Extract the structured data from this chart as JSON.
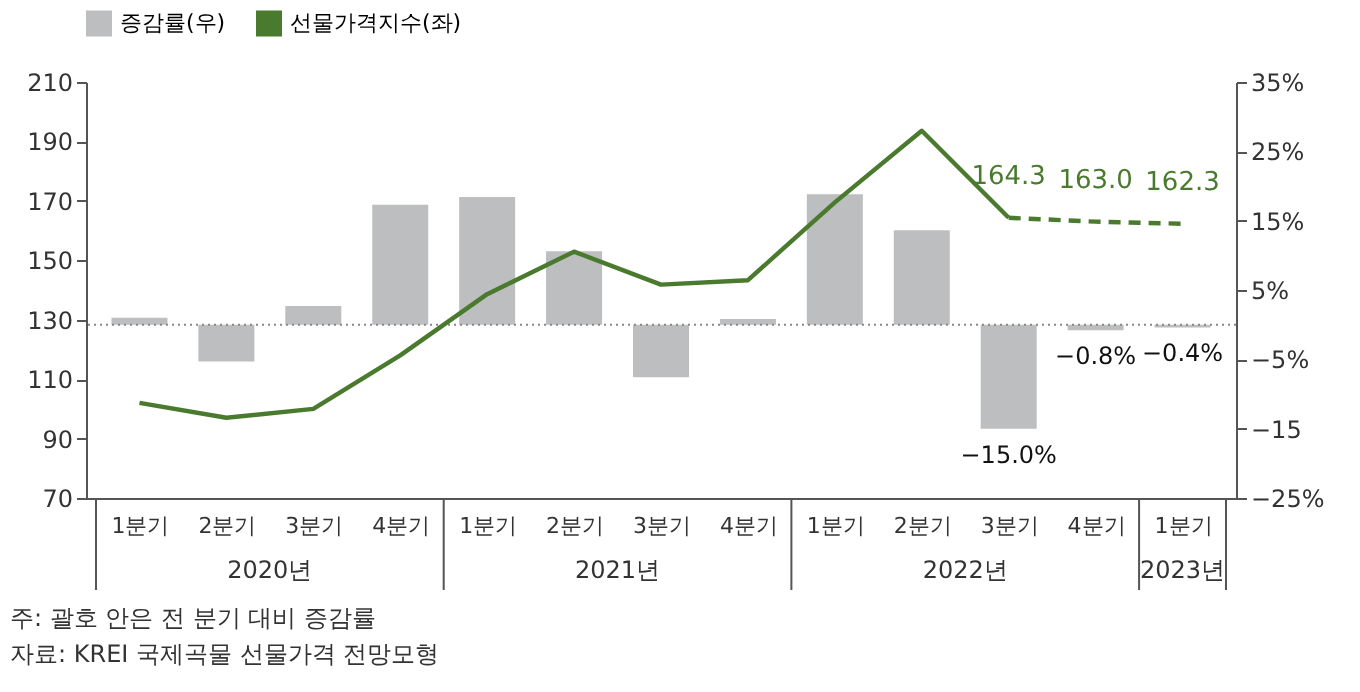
{
  "chart_data": {
    "type": "bar",
    "categories": [
      "1분기",
      "2분기",
      "3분기",
      "4분기",
      "1분기",
      "2분기",
      "3분기",
      "4분기",
      "1분기",
      "2분기",
      "3분기",
      "4분기",
      "1분기"
    ],
    "series": [
      {
        "name": "증감률(우)",
        "axis": "y2",
        "color": "#bdbec0",
        "values": [
          1.0,
          -5.3,
          2.7,
          17.3,
          18.4,
          10.6,
          -7.6,
          0.8,
          18.8,
          13.6,
          -15.0,
          -0.8,
          -0.4
        ],
        "value_labels": [
          null,
          null,
          null,
          null,
          null,
          null,
          null,
          null,
          null,
          null,
          "−15.0%",
          "−0.8%",
          "−0.4%"
        ]
      },
      {
        "name": "선물가격지수(좌)",
        "type": "line",
        "color": "#4a7a2e",
        "line_style": "solid",
        "values": [
          102,
          97,
          100,
          118,
          138.6,
          152.9,
          141.8,
          143.3,
          169.5,
          193.6,
          164.3,
          null,
          null
        ]
      },
      {
        "type": "line",
        "color": "#4a7a2e",
        "line_style": "dashed",
        "values": [
          null,
          null,
          null,
          null,
          null,
          null,
          null,
          null,
          null,
          null,
          164.3,
          163.0,
          162.3
        ],
        "value_labels": [
          null,
          null,
          null,
          null,
          null,
          null,
          null,
          null,
          null,
          null,
          "164.3",
          "163.0",
          "162.3"
        ]
      }
    ],
    "ylim": [
      70,
      210
    ],
    "yticks": [
      70,
      90,
      110,
      130,
      150,
      170,
      190,
      210
    ],
    "y2lim": [
      -25,
      35
    ],
    "y2ticks": [
      {
        "value": 35,
        "label": "35%"
      },
      {
        "value": 25,
        "label": "25%"
      },
      {
        "value": 15,
        "label": "15%"
      },
      {
        "value": 5,
        "label": "5%"
      },
      {
        "value": -5,
        "label": "−5%"
      },
      {
        "value": -15,
        "label": "−15"
      },
      {
        "value": -25,
        "label": "−25%"
      }
    ],
    "ref_lines": [
      {
        "axis": "y2",
        "value": 0,
        "color": "#888888",
        "line_style": "dotted"
      }
    ],
    "legend": "top",
    "grid": false,
    "marker": "none",
    "annotations": [
      "2020년",
      "2021년",
      "2022년",
      "2023년",
      "주: 괄호 안은 전 분기 대비 증감률",
      "자료: KREI 국제곡물 선물가격 전망모형"
    ]
  }
}
